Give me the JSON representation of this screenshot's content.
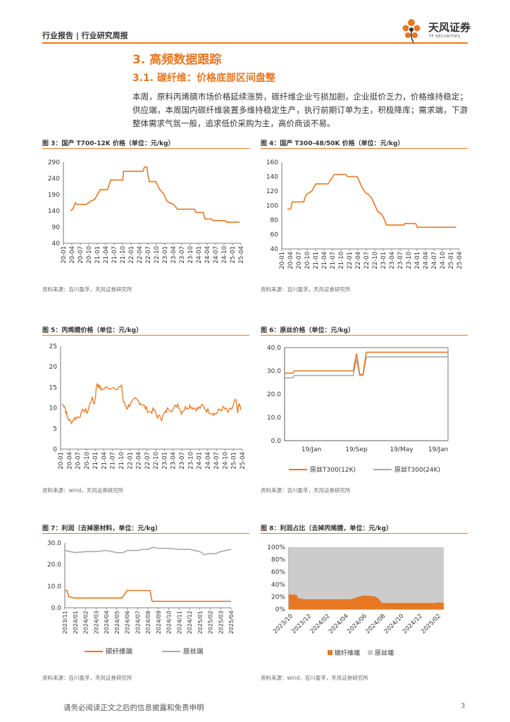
{
  "header": {
    "left": "行业报告 | 行业研究周报",
    "logo_cn": "天风证券",
    "logo_en": "TF SECURITIES"
  },
  "section_title": "3. 高频数据跟踪",
  "subsection_title": "3.1. 碳纤维：价格底部区间盘整",
  "paragraph": "本周，原料丙烯腈市场价格延续涨势，碳纤维企业亏损加剧，企业挺价乏力，价格维持稳定；供应端，本周国内碳纤维装置多维持稳定生产，执行前期订单为主，积极降库；需求端，下游整体需求气氛一般，追求低价采购为主，高价商谈不易。",
  "colors": {
    "accent": "#e87722",
    "gray": "#aaaaaa",
    "lightgray": "#cccccc"
  },
  "footer": {
    "disclaimer": "请务必阅读正文之后的信息披露和免责申明",
    "page": "3"
  },
  "chart_data": [
    {
      "id": "fig3",
      "type": "line",
      "caption": "图 3：国产 T700-12K 价格（单位：元/kg）",
      "source": "资料来源：百川盈孚，天风证券研究所",
      "ylim": [
        40,
        290
      ],
      "yticks": [
        40,
        90,
        140,
        190,
        240,
        290
      ],
      "xticks": [
        "20-01",
        "20-04",
        "20-07",
        "20-10",
        "21-01",
        "21-04",
        "21-07",
        "21-10",
        "22-01",
        "22-04",
        "22-07",
        "22-10",
        "23-01",
        "23-04",
        "23-07",
        "23-10",
        "24-01",
        "24-04",
        "24-07",
        "24-10",
        "25-01",
        "25-04"
      ],
      "series": [
        {
          "values": [
            [
              0,
              140
            ],
            [
              0.3,
              145
            ],
            [
              0.6,
              165
            ],
            [
              0.8,
              160
            ],
            [
              2,
              160
            ],
            [
              2.5,
              170
            ],
            [
              3,
              175
            ],
            [
              3.7,
              205
            ],
            [
              4.6,
              205
            ],
            [
              5,
              235
            ],
            [
              6.5,
              235
            ],
            [
              6.6,
              262
            ],
            [
              9,
              262
            ],
            [
              9.2,
              275
            ],
            [
              9.5,
              275
            ],
            [
              9.6,
              255
            ],
            [
              9.8,
              230
            ],
            [
              10.6,
              230
            ],
            [
              10.8,
              220
            ],
            [
              11.1,
              205
            ],
            [
              11.5,
              195
            ],
            [
              12,
              170
            ],
            [
              12.3,
              165
            ],
            [
              12.8,
              160
            ],
            [
              13.3,
              145
            ],
            [
              15.4,
              145
            ],
            [
              15.6,
              135
            ],
            [
              16.5,
              135
            ],
            [
              16.7,
              115
            ],
            [
              17.5,
              115
            ],
            [
              17.7,
              110
            ],
            [
              19.2,
              110
            ],
            [
              19.4,
              105
            ],
            [
              21,
              105
            ]
          ]
        }
      ]
    },
    {
      "id": "fig4",
      "type": "line",
      "caption": "图 4：国产 T300-48/50K 价格（单位：元/kg）",
      "source": "资料来源：百川盈孚，天风证券研究所",
      "ylim": [
        40,
        160
      ],
      "yticks": [
        40,
        60,
        80,
        100,
        120,
        140,
        160
      ],
      "xticks": [
        "20-01",
        "20-04",
        "20-07",
        "20-10",
        "21-01",
        "21-04",
        "21-07",
        "21-10",
        "22-01",
        "22-04",
        "22-07",
        "22-10",
        "23-01",
        "23-04",
        "23-07",
        "23-10",
        "24-01",
        "24-04",
        "24-07",
        "24-10",
        "25-01",
        "25-04"
      ],
      "series": [
        {
          "values": [
            [
              0,
              95
            ],
            [
              0.4,
              95
            ],
            [
              0.6,
              105
            ],
            [
              2,
              105
            ],
            [
              2.3,
              115
            ],
            [
              3,
              120
            ],
            [
              3.5,
              130
            ],
            [
              5,
              130
            ],
            [
              5.3,
              135
            ],
            [
              5.8,
              143
            ],
            [
              7.2,
              143
            ],
            [
              7.4,
              140
            ],
            [
              8.6,
              140
            ],
            [
              8.8,
              135
            ],
            [
              9.2,
              125
            ],
            [
              9.6,
              118
            ],
            [
              10,
              115
            ],
            [
              10.4,
              110
            ],
            [
              10.8,
              100
            ],
            [
              11.1,
              92
            ],
            [
              11.6,
              88
            ],
            [
              11.9,
              82
            ],
            [
              12.2,
              73
            ],
            [
              14.3,
              73
            ],
            [
              14.5,
              75
            ],
            [
              15.8,
              75
            ],
            [
              16,
              70
            ],
            [
              20.8,
              70
            ]
          ]
        }
      ]
    },
    {
      "id": "fig5",
      "type": "line",
      "caption": "图 5：丙烯腈价格（单位：元/kg）",
      "source": "资料来源：wind，天风证券研究所",
      "ylim": [
        0,
        25
      ],
      "yticks": [
        0,
        5,
        10,
        15,
        20,
        25
      ],
      "xticks": [
        "20-01",
        "20-04",
        "20-07",
        "20-10",
        "21-01",
        "21-04",
        "21-07",
        "21-10",
        "22-01",
        "22-04",
        "22-07",
        "22-10",
        "23-01",
        "23-04",
        "23-07",
        "23-10",
        "24-01",
        "24-04",
        "24-07",
        "24-10",
        "25-01",
        "25-04"
      ]
    },
    {
      "id": "fig6",
      "type": "line",
      "caption": "图 6：原丝价格（单位：元/kg）",
      "source": "资料来源：百川盈孚，天风证券研究所",
      "ylim": [
        0,
        40
      ],
      "yticks": [
        "0.0",
        "10.0",
        "20.0",
        "30.0",
        "40.0"
      ],
      "xticks": [
        "19/Jan",
        "19/Sep",
        "19/May",
        "19/Jan"
      ],
      "series": [
        {
          "name": "原丝T300(12K)",
          "color": "#e87722"
        },
        {
          "name": "原丝T300(24K)",
          "color": "#aaaaaa"
        }
      ]
    },
    {
      "id": "fig7",
      "type": "line",
      "caption": "图 7：利润（去掉原材料，单位：元/kg）",
      "source": "资料来源：百川盈孚，天风证券研究所",
      "ylim": [
        0,
        30
      ],
      "yticks": [
        "0.0",
        "10.0",
        "20.0",
        "30.0"
      ],
      "xticks": [
        "2023/11",
        "2024/01",
        "2024/02",
        "2024/03",
        "2024/04",
        "2024/05",
        "2024/06",
        "2024/07",
        "2024/08",
        "2024/09",
        "2024/10",
        "2024/11",
        "2024/12",
        "2025/01",
        "2025/02",
        "2025/03",
        "2025/04"
      ],
      "series": [
        {
          "name": "碳纤维端",
          "color": "#e87722"
        },
        {
          "name": "原丝端",
          "color": "#aaaaaa"
        }
      ]
    },
    {
      "id": "fig8",
      "type": "area",
      "caption": "图 8：利润占比（去掉丙烯腈，单位：元/kg）",
      "source": "资料来源：wind，百川盈孚，天风证券研究所",
      "ylim": [
        0,
        100
      ],
      "yticks": [
        "0%",
        "20%",
        "40%",
        "60%",
        "80%",
        "100%"
      ],
      "xticks": [
        "2023/10",
        "2023/12",
        "2024/02",
        "2024/04",
        "2024/06",
        "2024/08",
        "2024/10",
        "2024/12",
        "2025/02"
      ],
      "series": [
        {
          "name": "碳纤维端",
          "color": "#e87722"
        },
        {
          "name": "原丝端",
          "color": "#cccccc"
        }
      ]
    }
  ]
}
